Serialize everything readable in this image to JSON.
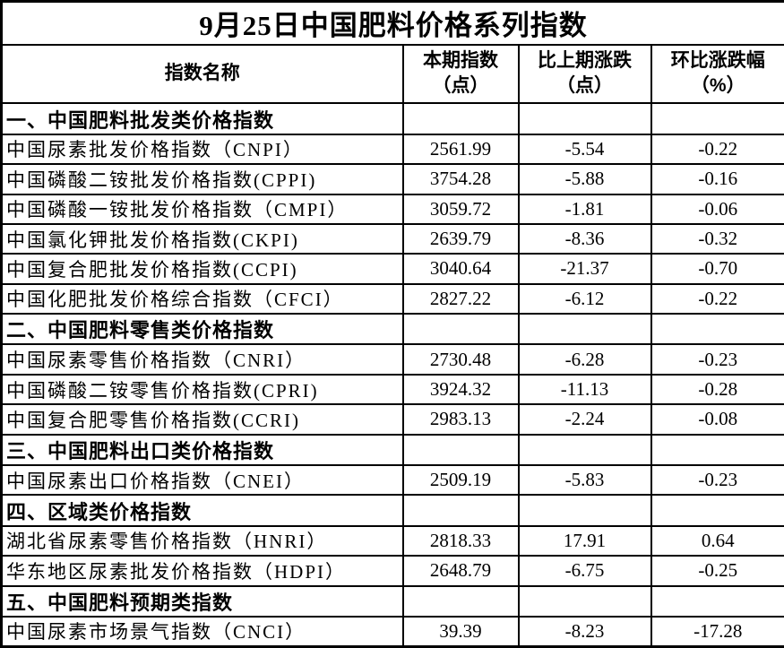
{
  "title": "9月25日中国肥料价格系列指数",
  "table": {
    "columns": {
      "name": "指数名称",
      "current": [
        "本期指数",
        "（点）"
      ],
      "change": [
        "比上期涨跌",
        "（点）"
      ],
      "pct": [
        "环比涨跌幅",
        "（%）"
      ]
    },
    "rows": [
      {
        "type": "section",
        "name": "一、中国肥料批发类价格指数",
        "current": "",
        "change": "",
        "pct": ""
      },
      {
        "type": "data",
        "name": "中国尿素批发价格指数（CNPI）",
        "current": "2561.99",
        "change": "-5.54",
        "pct": "-0.22"
      },
      {
        "type": "data",
        "name": "中国磷酸二铵批发价格指数(CPPI)",
        "current": "3754.28",
        "change": "-5.88",
        "pct": "-0.16"
      },
      {
        "type": "data",
        "name": "中国磷酸一铵批发价格指数（CMPI）",
        "current": "3059.72",
        "change": "-1.81",
        "pct": "-0.06"
      },
      {
        "type": "data",
        "name": "中国氯化钾批发价格指数(CKPI)",
        "current": "2639.79",
        "change": "-8.36",
        "pct": "-0.32"
      },
      {
        "type": "data",
        "name": "中国复合肥批发价格指数(CCPI)",
        "current": "3040.64",
        "change": "-21.37",
        "pct": "-0.70"
      },
      {
        "type": "data",
        "name": "中国化肥批发价格综合指数（CFCI）",
        "current": "2827.22",
        "change": "-6.12",
        "pct": "-0.22"
      },
      {
        "type": "section",
        "name": "二、中国肥料零售类价格指数",
        "current": "",
        "change": "",
        "pct": ""
      },
      {
        "type": "data",
        "name": "中国尿素零售价格指数（CNRI）",
        "current": "2730.48",
        "change": "-6.28",
        "pct": "-0.23"
      },
      {
        "type": "data",
        "name": "中国磷酸二铵零售价格指数(CPRI)",
        "current": "3924.32",
        "change": "-11.13",
        "pct": "-0.28"
      },
      {
        "type": "data",
        "name": "中国复合肥零售价格指数(CCRI)",
        "current": "2983.13",
        "change": "-2.24",
        "pct": "-0.08"
      },
      {
        "type": "section",
        "name": "三、中国肥料出口类价格指数",
        "current": "",
        "change": "",
        "pct": ""
      },
      {
        "type": "data",
        "name": "中国尿素出口价格指数（CNEI）",
        "current": "2509.19",
        "change": "-5.83",
        "pct": "-0.23"
      },
      {
        "type": "section",
        "name": "四、区域类价格指数",
        "current": "",
        "change": "",
        "pct": ""
      },
      {
        "type": "data",
        "name": "湖北省尿素零售价格指数（HNRI）",
        "current": "2818.33",
        "change": "17.91",
        "pct": "0.64"
      },
      {
        "type": "data",
        "name": "华东地区尿素批发价格指数（HDPI）",
        "current": "2648.79",
        "change": "-6.75",
        "pct": "-0.25"
      },
      {
        "type": "section",
        "name": "五、中国肥料预期类指数",
        "current": "",
        "change": "",
        "pct": ""
      },
      {
        "type": "data",
        "name": "中国尿素市场景气指数（CNCI）",
        "current": "39.39",
        "change": "-8.23",
        "pct": "-17.28"
      }
    ]
  },
  "colors": {
    "border": "#000000",
    "text": "#000000",
    "background": "#ffffff"
  }
}
